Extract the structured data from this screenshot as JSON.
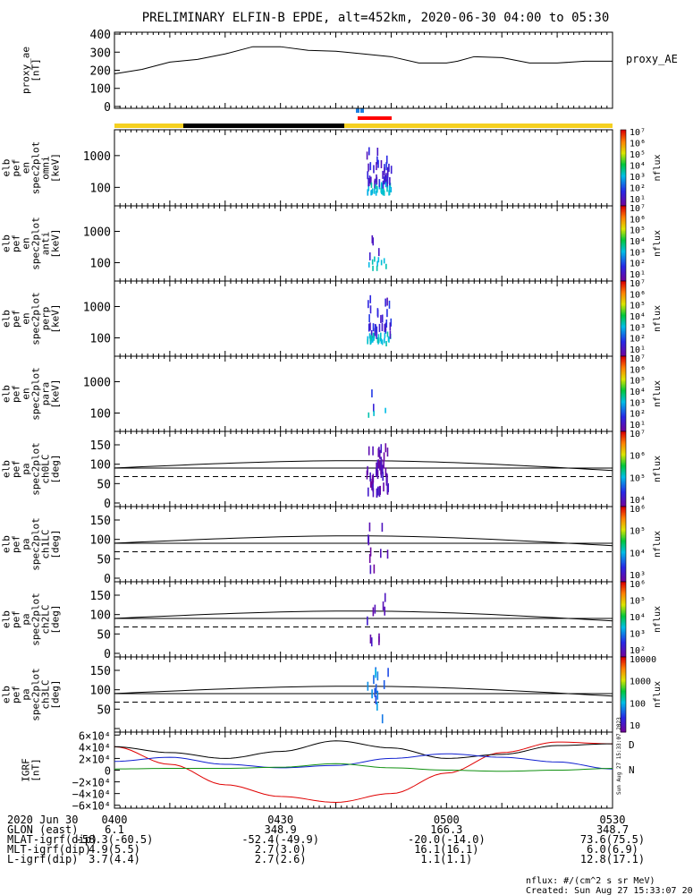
{
  "title": "PRELIMINARY ELFIN-B EPDE, alt=452km, 2020-06-30 04:00 to 05:30",
  "colors": {
    "yellow": "#f5d020",
    "black": "#000000",
    "red": "#ff0000",
    "blue": "#1e7fe0"
  },
  "chart_data": [
    {
      "type": "line",
      "panel": "proxy_ae",
      "ylabel_lines": [
        "proxy_ae",
        "[nT]"
      ],
      "legend": "proxy_AE",
      "y_ticks": [
        "400",
        "300",
        "200",
        "100",
        "0"
      ],
      "ylim": [
        -10,
        410
      ],
      "x_minutes": [
        0,
        5,
        10,
        15,
        20,
        25,
        30,
        35,
        40,
        45,
        50,
        55,
        60,
        62,
        65,
        70,
        75,
        80,
        85,
        90
      ],
      "values": [
        180,
        205,
        245,
        260,
        290,
        330,
        330,
        310,
        305,
        290,
        275,
        240,
        240,
        250,
        275,
        270,
        240,
        240,
        250,
        250
      ]
    },
    {
      "type": "heatmap",
      "panel": "spec2plot_omni",
      "ylabel_lines": [
        "elb",
        "pef",
        "en",
        "spec2plot",
        "omni",
        "[keV]"
      ],
      "y_ticks": [
        "1000",
        "100"
      ],
      "colorbar_label": "nflux",
      "colorbar_ticks": [
        "10⁷",
        "10⁶",
        "10⁵",
        "10⁴",
        "10³",
        "10²",
        "10¹"
      ]
    },
    {
      "type": "heatmap",
      "panel": "spec2plot_anti",
      "ylabel_lines": [
        "elb",
        "pef",
        "en",
        "spec2plot",
        "anti",
        "[keV]"
      ],
      "y_ticks": [
        "1000",
        "100"
      ],
      "colorbar_label": "nflux",
      "colorbar_ticks": [
        "10⁷",
        "10⁶",
        "10⁵",
        "10⁴",
        "10³",
        "10²",
        "10¹"
      ]
    },
    {
      "type": "heatmap",
      "panel": "spec2plot_perp",
      "ylabel_lines": [
        "elb",
        "pef",
        "en",
        "spec2plot",
        "perp",
        "[keV]"
      ],
      "y_ticks": [
        "1000",
        "100"
      ],
      "colorbar_label": "nflux",
      "colorbar_ticks": [
        "10⁷",
        "10⁶",
        "10⁵",
        "10⁴",
        "10³",
        "10²",
        "10¹"
      ]
    },
    {
      "type": "heatmap",
      "panel": "spec2plot_para",
      "ylabel_lines": [
        "elb",
        "pef",
        "en",
        "spec2plot",
        "para",
        "[keV]"
      ],
      "y_ticks": [
        "1000",
        "100"
      ],
      "colorbar_label": "nflux",
      "colorbar_ticks": [
        "10⁷",
        "10⁶",
        "10⁵",
        "10⁴",
        "10³",
        "10²",
        "10¹"
      ]
    },
    {
      "type": "heatmap",
      "panel": "spec2plot_ch0LC",
      "ylabel_lines": [
        "elb",
        "pef",
        "pa",
        "spec2plot",
        "ch0LC",
        "[deg]"
      ],
      "y_ticks": [
        "150",
        "100",
        "50",
        "0"
      ],
      "colorbar_label": "nflux",
      "colorbar_ticks": [
        "10⁷",
        "10⁶",
        "10⁵",
        "10⁴"
      ]
    },
    {
      "type": "heatmap",
      "panel": "spec2plot_ch1LC",
      "ylabel_lines": [
        "elb",
        "pef",
        "pa",
        "spec2plot",
        "ch1LC",
        "[deg]"
      ],
      "y_ticks": [
        "150",
        "100",
        "50",
        "0"
      ],
      "colorbar_label": "nflux",
      "colorbar_ticks": [
        "10⁶",
        "10⁵",
        "10⁴",
        "10³"
      ]
    },
    {
      "type": "heatmap",
      "panel": "spec2plot_ch2LC",
      "ylabel_lines": [
        "elb",
        "pef",
        "pa",
        "spec2plot",
        "ch2LC",
        "[deg]"
      ],
      "y_ticks": [
        "150",
        "100",
        "50",
        "0"
      ],
      "colorbar_label": "nflux",
      "colorbar_ticks": [
        "10⁶",
        "10⁵",
        "10⁴",
        "10³",
        "10²"
      ]
    },
    {
      "type": "heatmap",
      "panel": "spec2plot_ch3LC",
      "ylabel_lines": [
        "elb",
        "pef",
        "pa",
        "spec2plot",
        "ch3LC",
        "[deg]"
      ],
      "y_ticks": [
        "150",
        "100",
        "50"
      ],
      "colorbar_label": "nflux",
      "colorbar_ticks": [
        "10000",
        "1000",
        "100",
        "10"
      ]
    },
    {
      "type": "line",
      "panel": "IGRF",
      "ylabel_lines": [
        "IGRF",
        "[nT]"
      ],
      "y_ticks": [
        "6×10⁴",
        "4×10⁴",
        "2×10⁴",
        "0",
        "−2×10⁴",
        "−4×10⁴",
        "−6×10⁴"
      ],
      "ylim": [
        -65000,
        65000
      ],
      "x_minutes": [
        0,
        10,
        20,
        30,
        40,
        50,
        60,
        70,
        80,
        90
      ],
      "series": [
        {
          "name": "D",
          "color": "#e00000",
          "values": [
            40000,
            10000,
            -25000,
            -45000,
            -55000,
            -40000,
            -5000,
            30000,
            48000,
            45000
          ]
        },
        {
          "name": "",
          "color": "#000000",
          "values": [
            40000,
            30000,
            20000,
            32000,
            50000,
            38000,
            20000,
            27000,
            42000,
            45000
          ]
        },
        {
          "name": "N",
          "color": "#1020d0",
          "values": [
            15000,
            22000,
            10000,
            4000,
            8000,
            20000,
            28000,
            22000,
            14000,
            2000
          ]
        },
        {
          "name": "",
          "color": "#109010",
          "values": [
            2000,
            3000,
            3000,
            5000,
            11000,
            4000,
            0,
            -2000,
            0,
            3000
          ]
        }
      ]
    }
  ],
  "x_axis": {
    "row_labels": [
      "2020 Jun 30",
      "GLON (east)",
      "MLAT-igrf(dip)",
      "MLT-igrf(dip)",
      "L-igrf(dip)"
    ],
    "ticks": [
      {
        "minute": 0,
        "values": [
          "0400",
          "6.1",
          "-58.3(-60.5)",
          "4.9(5.5)",
          "3.7(4.4)"
        ]
      },
      {
        "minute": 30,
        "values": [
          "0430",
          "348.9",
          "-52.4(-49.9)",
          "2.7(3.0)",
          "2.7(2.6)"
        ]
      },
      {
        "minute": 60,
        "values": [
          "0500",
          "166.3",
          "-20.0(-14.0)",
          "16.1(16.1)",
          "1.1(1.1)"
        ]
      },
      {
        "minute": 90,
        "values": [
          "0530",
          "348.7",
          "73.6(75.5)",
          "6.0(6.9)",
          "12.8(17.1)"
        ]
      }
    ]
  },
  "footer": {
    "units": "nflux: #/(cm^2 s sr MeV)",
    "created": "Created: Sun Aug 27 15:33:07 2023",
    "vertical_stamp": "Sun Aug 27 15:33:07 2023"
  }
}
